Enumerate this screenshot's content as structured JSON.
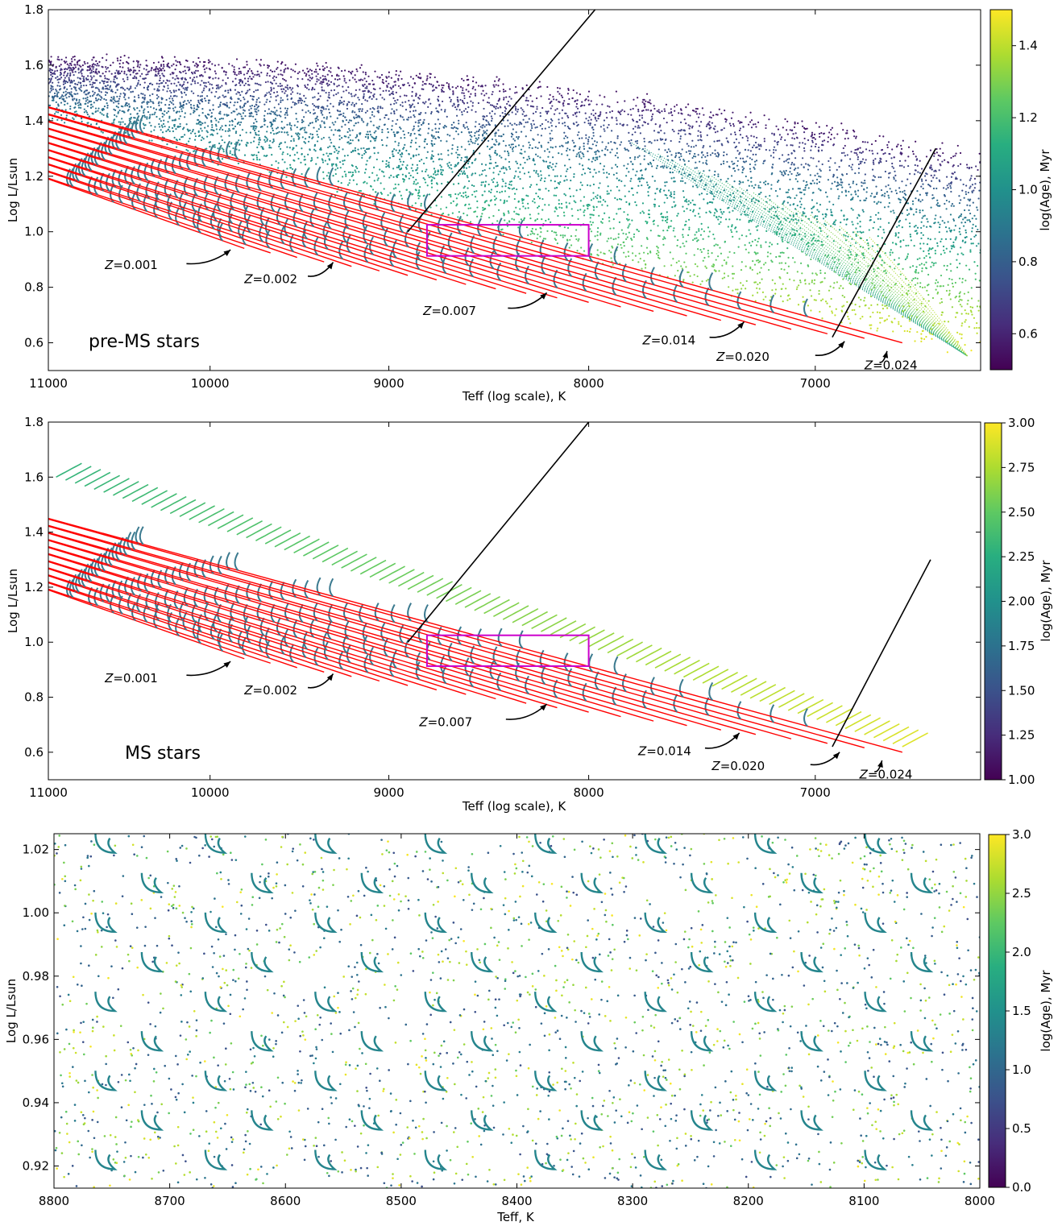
{
  "chart_data": [
    {
      "id": "pre_ms",
      "type": "scatter",
      "panel_label": "pre-MS stars",
      "xlabel": "Teff (log scale), K",
      "ylabel": "Log L/Lsun",
      "xscale": "log",
      "x_reversed": true,
      "xlim": [
        11000,
        6350
      ],
      "ylim": [
        0.5,
        1.8
      ],
      "xticks": [
        11000,
        10000,
        9000,
        8000,
        7000
      ],
      "xtick_labels": [
        "11000",
        "10000",
        "9000",
        "8000",
        "7000"
      ],
      "yticks": [
        0.6,
        0.8,
        1.0,
        1.2,
        1.4,
        1.6,
        1.8
      ],
      "ytick_labels": [
        "0.6",
        "0.8",
        "1.0",
        "1.2",
        "1.4",
        "1.6",
        "1.8"
      ],
      "colorbar": {
        "label": "log(Age), Myr",
        "colormap": "viridis",
        "range": [
          0.5,
          1.5
        ],
        "ticks": [
          0.6,
          0.8,
          1.0,
          1.2,
          1.4
        ],
        "tick_labels": [
          "0.6",
          "0.8",
          "1.0",
          "1.2",
          "1.4"
        ]
      },
      "zoom_box": {
        "teff": [
          8800,
          8000
        ],
        "logl": [
          0.913,
          1.025
        ],
        "color": "#cc00cc"
      },
      "guide_lines": [
        {
          "teff": [
            8900,
            7970
          ],
          "logl": [
            1.0,
            1.8
          ]
        },
        {
          "teff": [
            6930,
            6520
          ],
          "logl": [
            0.62,
            1.3
          ]
        }
      ],
      "isochrone_color": "#ff0000",
      "annotations": [
        {
          "label_prefix": "Z",
          "label": "=0.001",
          "text_teff": 10640,
          "text_logl": 0.865,
          "arrow_teff": [
            10140,
            9880
          ],
          "arrow_logl": [
            0.885,
            0.935
          ]
        },
        {
          "label_prefix": "Z",
          "label": "=0.002",
          "text_teff": 9800,
          "text_logl": 0.815,
          "arrow_teff": [
            9440,
            9300
          ],
          "arrow_logl": [
            0.84,
            0.89
          ]
        },
        {
          "label_prefix": "Z",
          "label": "=0.007",
          "text_teff": 8820,
          "text_logl": 0.7,
          "arrow_teff": [
            8390,
            8200
          ],
          "arrow_logl": [
            0.725,
            0.78
          ]
        },
        {
          "label_prefix": "Z",
          "label": "=0.014",
          "text_teff": 7750,
          "text_logl": 0.595,
          "arrow_teff": [
            7450,
            7300
          ],
          "arrow_logl": [
            0.62,
            0.675
          ]
        },
        {
          "label_prefix": "Z",
          "label": "=0.020",
          "text_teff": 7420,
          "text_logl": 0.535,
          "arrow_teff": [
            7000,
            6880
          ],
          "arrow_logl": [
            0.555,
            0.605
          ]
        },
        {
          "label_prefix": "Z",
          "label": "=0.024",
          "text_teff": 6800,
          "text_logl": 0.505,
          "arrow_teff": [
            6740,
            6710
          ],
          "arrow_logl": [
            0.53,
            0.57
          ]
        }
      ]
    },
    {
      "id": "ms",
      "type": "scatter",
      "panel_label": "MS stars",
      "xlabel": "Teff (log scale), K",
      "ylabel": "Log L/Lsun",
      "xscale": "log",
      "x_reversed": true,
      "xlim": [
        11000,
        6350
      ],
      "ylim": [
        0.5,
        1.8
      ],
      "xticks": [
        11000,
        10000,
        9000,
        8000,
        7000
      ],
      "xtick_labels": [
        "11000",
        "10000",
        "9000",
        "8000",
        "7000"
      ],
      "yticks": [
        0.6,
        0.8,
        1.0,
        1.2,
        1.4,
        1.6,
        1.8
      ],
      "ytick_labels": [
        "0.6",
        "0.8",
        "1.0",
        "1.2",
        "1.4",
        "1.6",
        "1.8"
      ],
      "colorbar": {
        "label": "log(Age), Myr",
        "colormap": "viridis",
        "range": [
          1.0,
          3.0
        ],
        "ticks": [
          1.0,
          1.25,
          1.5,
          1.75,
          2.0,
          2.25,
          2.5,
          2.75,
          3.0
        ],
        "tick_labels": [
          "1.00",
          "1.25",
          "1.50",
          "1.75",
          "2.00",
          "2.25",
          "2.50",
          "2.75",
          "3.00"
        ]
      },
      "zoom_box": {
        "teff": [
          8800,
          8000
        ],
        "logl": [
          0.913,
          1.025
        ],
        "color": "#cc00cc"
      },
      "guide_lines": [
        {
          "teff": [
            8900,
            8000
          ],
          "logl": [
            1.0,
            1.8
          ]
        },
        {
          "teff": [
            6930,
            6540
          ],
          "logl": [
            0.62,
            1.3
          ]
        }
      ],
      "isochrone_color": "#ff0000",
      "annotations": [
        {
          "label_prefix": "Z",
          "label": "=0.001",
          "text_teff": 10640,
          "text_logl": 0.855,
          "arrow_teff": [
            10140,
            9880
          ],
          "arrow_logl": [
            0.88,
            0.93
          ]
        },
        {
          "label_prefix": "Z",
          "label": "=0.002",
          "text_teff": 9800,
          "text_logl": 0.81,
          "arrow_teff": [
            9440,
            9300
          ],
          "arrow_logl": [
            0.835,
            0.885
          ]
        },
        {
          "label_prefix": "Z",
          "label": "=0.007",
          "text_teff": 8840,
          "text_logl": 0.695,
          "arrow_teff": [
            8400,
            8200
          ],
          "arrow_logl": [
            0.72,
            0.775
          ]
        },
        {
          "label_prefix": "Z",
          "label": "=0.014",
          "text_teff": 7770,
          "text_logl": 0.59,
          "arrow_teff": [
            7470,
            7320
          ],
          "arrow_logl": [
            0.615,
            0.67
          ]
        },
        {
          "label_prefix": "Z",
          "label": "=0.020",
          "text_teff": 7440,
          "text_logl": 0.535,
          "arrow_teff": [
            7020,
            6900
          ],
          "arrow_logl": [
            0.555,
            0.6
          ]
        },
        {
          "label_prefix": "Z",
          "label": "=0.024",
          "text_teff": 6820,
          "text_logl": 0.505,
          "arrow_teff": [
            6760,
            6730
          ],
          "arrow_logl": [
            0.53,
            0.57
          ]
        }
      ]
    },
    {
      "id": "zoom",
      "type": "scatter",
      "xlabel": "Teff, K",
      "ylabel": "Log L/Lsun",
      "xscale": "linear",
      "x_reversed": true,
      "xlim": [
        8800,
        8000
      ],
      "ylim": [
        0.913,
        1.025
      ],
      "xticks": [
        8800,
        8700,
        8600,
        8500,
        8400,
        8300,
        8200,
        8100,
        8000
      ],
      "xtick_labels": [
        "8800",
        "8700",
        "8600",
        "8500",
        "8400",
        "8300",
        "8200",
        "8100",
        "8000"
      ],
      "yticks": [
        0.92,
        0.94,
        0.96,
        0.98,
        1.0,
        1.02
      ],
      "ytick_labels": [
        "0.92",
        "0.94",
        "0.96",
        "0.98",
        "1.00",
        "1.02"
      ],
      "colorbar": {
        "label": "log(Age), Myr",
        "colormap": "viridis",
        "range": [
          0.0,
          3.0
        ],
        "ticks": [
          0.0,
          0.5,
          1.0,
          1.5,
          2.0,
          2.5,
          3.0
        ],
        "tick_labels": [
          "0.0",
          "0.5",
          "1.0",
          "1.5",
          "2.0",
          "2.5",
          "3.0"
        ]
      }
    }
  ]
}
